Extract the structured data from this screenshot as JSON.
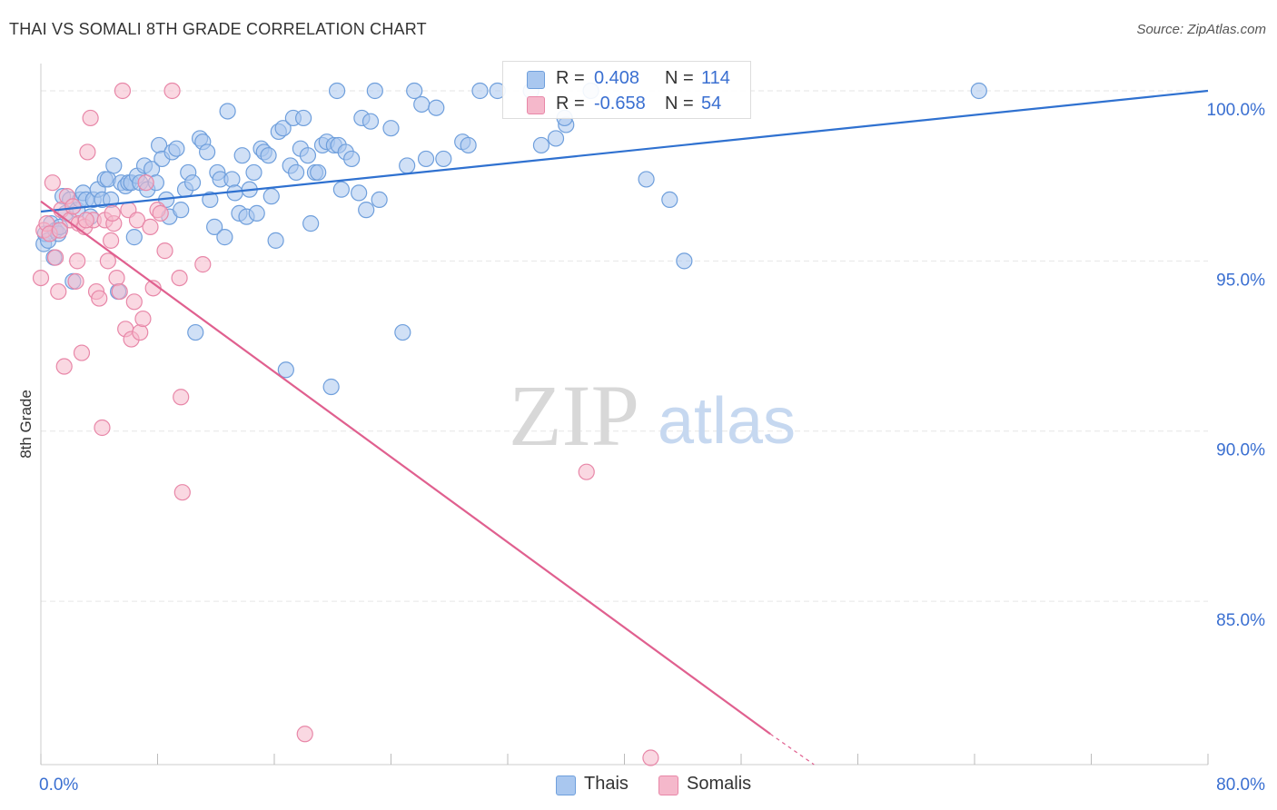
{
  "header": {
    "title": "THAI VS SOMALI 8TH GRADE CORRELATION CHART",
    "source": "Source: ZipAtlas.com"
  },
  "watermark": {
    "zip": "ZIP",
    "atlas": "atlas"
  },
  "legend": {
    "rows": [
      {
        "r_label": "R =",
        "r_value": "0.408",
        "n_label": "N =",
        "n_value": "114"
      },
      {
        "r_label": "R =",
        "r_value": "-0.658",
        "n_label": "N =",
        "n_value": "54"
      }
    ]
  },
  "bottom_legend": {
    "items": [
      {
        "label": "Thais"
      },
      {
        "label": "Somalis"
      }
    ]
  },
  "colors": {
    "thais_fill": "#a9c7ef",
    "thais_stroke": "#6f9fdc",
    "thais_line": "#2f71d0",
    "somalis_fill": "#f5b8cb",
    "somalis_stroke": "#e887a8",
    "somalis_line": "#e0608f",
    "tick_label": "#3a6fd1",
    "grid": "#e6e6e6"
  },
  "chart_data": {
    "type": "scatter",
    "title": "THAI VS SOMALI 8TH GRADE CORRELATION CHART",
    "xlabel": "",
    "ylabel": "8th Grade",
    "xlim": [
      0,
      80
    ],
    "ylim": [
      80.2,
      100.8
    ],
    "x_tick_labels": [
      "0.0%",
      "80.0%"
    ],
    "y_tick_labels": [
      "100.0%",
      "95.0%",
      "90.0%",
      "85.0%"
    ],
    "y_ticks": [
      100,
      95,
      90,
      85
    ],
    "grid": true,
    "series": [
      {
        "name": "Thais",
        "r": 0.408,
        "n": 114,
        "trend": {
          "x0": 0,
          "y0": 96.45,
          "x1": 80,
          "y1": 100.0
        },
        "points": [
          [
            0.2,
            95.5
          ],
          [
            0.3,
            95.8
          ],
          [
            0.5,
            95.6
          ],
          [
            0.7,
            96.1
          ],
          [
            0.9,
            95.1
          ],
          [
            1.0,
            95.9
          ],
          [
            1.2,
            95.8
          ],
          [
            1.3,
            96.0
          ],
          [
            1.5,
            96.9
          ],
          [
            1.7,
            96.4
          ],
          [
            2.0,
            96.8
          ],
          [
            2.2,
            94.4
          ],
          [
            2.5,
            96.5
          ],
          [
            2.7,
            96.8
          ],
          [
            2.9,
            97.0
          ],
          [
            3.1,
            96.8
          ],
          [
            3.4,
            96.3
          ],
          [
            3.6,
            96.8
          ],
          [
            3.9,
            97.1
          ],
          [
            4.2,
            96.8
          ],
          [
            4.4,
            97.4
          ],
          [
            4.6,
            97.4
          ],
          [
            4.8,
            96.8
          ],
          [
            5.0,
            97.8
          ],
          [
            5.3,
            94.1
          ],
          [
            5.5,
            97.3
          ],
          [
            5.8,
            97.2
          ],
          [
            6.0,
            97.3
          ],
          [
            6.2,
            97.3
          ],
          [
            6.4,
            95.7
          ],
          [
            6.6,
            97.5
          ],
          [
            6.8,
            97.3
          ],
          [
            7.1,
            97.8
          ],
          [
            7.3,
            97.1
          ],
          [
            7.6,
            97.7
          ],
          [
            7.9,
            97.3
          ],
          [
            8.1,
            98.4
          ],
          [
            8.3,
            98.0
          ],
          [
            8.6,
            96.8
          ],
          [
            8.8,
            96.3
          ],
          [
            9.0,
            98.2
          ],
          [
            9.3,
            98.3
          ],
          [
            9.6,
            96.5
          ],
          [
            9.9,
            97.1
          ],
          [
            10.1,
            97.6
          ],
          [
            10.4,
            97.3
          ],
          [
            10.6,
            92.9
          ],
          [
            10.9,
            98.6
          ],
          [
            11.1,
            98.5
          ],
          [
            11.4,
            98.2
          ],
          [
            11.6,
            96.8
          ],
          [
            11.9,
            96.0
          ],
          [
            12.1,
            97.6
          ],
          [
            12.3,
            97.4
          ],
          [
            12.6,
            95.7
          ],
          [
            12.8,
            99.4
          ],
          [
            13.1,
            97.4
          ],
          [
            13.3,
            97.0
          ],
          [
            13.6,
            96.4
          ],
          [
            13.8,
            98.1
          ],
          [
            14.1,
            96.3
          ],
          [
            14.3,
            97.1
          ],
          [
            14.6,
            97.6
          ],
          [
            14.8,
            96.4
          ],
          [
            15.1,
            98.3
          ],
          [
            15.3,
            98.2
          ],
          [
            15.6,
            98.1
          ],
          [
            15.8,
            96.9
          ],
          [
            16.1,
            95.6
          ],
          [
            16.3,
            98.8
          ],
          [
            16.6,
            98.9
          ],
          [
            16.8,
            91.8
          ],
          [
            17.1,
            97.8
          ],
          [
            17.3,
            99.2
          ],
          [
            17.5,
            97.6
          ],
          [
            17.8,
            98.3
          ],
          [
            18.0,
            99.2
          ],
          [
            18.3,
            98.1
          ],
          [
            18.5,
            96.1
          ],
          [
            18.8,
            97.6
          ],
          [
            19.0,
            97.6
          ],
          [
            19.3,
            98.4
          ],
          [
            19.6,
            98.5
          ],
          [
            19.9,
            91.3
          ],
          [
            20.1,
            98.4
          ],
          [
            20.4,
            98.4
          ],
          [
            20.6,
            97.1
          ],
          [
            20.9,
            98.2
          ],
          [
            21.3,
            98.0
          ],
          [
            21.8,
            97.0
          ],
          [
            22.0,
            99.2
          ],
          [
            22.3,
            96.5
          ],
          [
            22.6,
            99.1
          ],
          [
            22.9,
            100.0
          ],
          [
            23.2,
            96.8
          ],
          [
            24.0,
            98.9
          ],
          [
            24.8,
            92.9
          ],
          [
            25.1,
            97.8
          ],
          [
            25.6,
            100.0
          ],
          [
            26.1,
            99.6
          ],
          [
            26.4,
            98.0
          ],
          [
            27.1,
            99.5
          ],
          [
            27.6,
            98.0
          ],
          [
            28.9,
            98.5
          ],
          [
            29.3,
            98.4
          ],
          [
            30.1,
            100.0
          ],
          [
            31.3,
            100.0
          ],
          [
            34.3,
            98.4
          ],
          [
            35.3,
            98.6
          ],
          [
            36.0,
            99.0
          ],
          [
            37.7,
            100.0
          ],
          [
            41.5,
            97.4
          ],
          [
            43.1,
            96.8
          ],
          [
            44.1,
            95.0
          ],
          [
            64.3,
            100.0
          ],
          [
            35.9,
            99.2
          ],
          [
            20.3,
            100.0
          ],
          [
            33.6,
            100.0
          ]
        ]
      },
      {
        "name": "Somalis",
        "r": -0.658,
        "n": 54,
        "trend": {
          "x0": 0,
          "y0": 96.75,
          "x1": 50,
          "y1": 81.1,
          "dash_to_x": 53,
          "dash_to_y": 80.2
        },
        "points": [
          [
            0.0,
            94.5
          ],
          [
            0.2,
            95.9
          ],
          [
            0.4,
            96.1
          ],
          [
            0.6,
            95.8
          ],
          [
            0.8,
            97.3
          ],
          [
            1.0,
            95.1
          ],
          [
            1.2,
            94.1
          ],
          [
            1.4,
            96.5
          ],
          [
            1.6,
            91.9
          ],
          [
            1.8,
            96.9
          ],
          [
            2.0,
            96.2
          ],
          [
            2.2,
            96.6
          ],
          [
            2.4,
            94.4
          ],
          [
            2.6,
            96.1
          ],
          [
            2.8,
            92.3
          ],
          [
            3.0,
            96.0
          ],
          [
            3.2,
            98.2
          ],
          [
            3.4,
            99.2
          ],
          [
            3.6,
            96.2
          ],
          [
            3.8,
            94.1
          ],
          [
            4.0,
            93.9
          ],
          [
            4.2,
            90.1
          ],
          [
            4.4,
            96.2
          ],
          [
            4.6,
            95.0
          ],
          [
            4.8,
            95.6
          ],
          [
            5.0,
            96.1
          ],
          [
            5.2,
            94.5
          ],
          [
            5.4,
            94.1
          ],
          [
            5.6,
            100.0
          ],
          [
            5.8,
            93.0
          ],
          [
            6.0,
            96.5
          ],
          [
            6.2,
            92.7
          ],
          [
            6.4,
            93.8
          ],
          [
            6.6,
            96.2
          ],
          [
            6.8,
            92.9
          ],
          [
            7.0,
            93.3
          ],
          [
            7.2,
            97.3
          ],
          [
            7.5,
            96.0
          ],
          [
            7.7,
            94.2
          ],
          [
            8.0,
            96.5
          ],
          [
            8.2,
            96.4
          ],
          [
            8.5,
            95.3
          ],
          [
            9.0,
            100.0
          ],
          [
            9.5,
            94.5
          ],
          [
            9.6,
            91.0
          ],
          [
            9.7,
            88.2
          ],
          [
            11.1,
            94.9
          ],
          [
            18.1,
            81.1
          ],
          [
            37.4,
            88.8
          ],
          [
            41.8,
            80.4
          ],
          [
            4.9,
            96.4
          ],
          [
            3.1,
            96.2
          ],
          [
            1.3,
            95.9
          ],
          [
            2.5,
            95.0
          ]
        ]
      }
    ]
  }
}
